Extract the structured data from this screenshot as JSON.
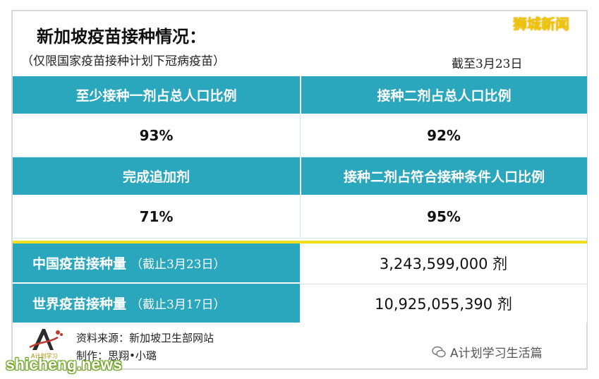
{
  "header": {
    "title": "新加坡疫苗接种情况：",
    "subtitle": "（仅限国家疫苗接种计划下冠病疫苗）",
    "as_of": "截至3月23日",
    "brand": "狮城新闻"
  },
  "stats": [
    {
      "label": "至少接种一剂占总人口比例",
      "value": "93%"
    },
    {
      "label": "接种二剂占总人口比例",
      "value": "92%"
    },
    {
      "label": "完成追加剂",
      "value": "71%"
    },
    {
      "label": "接种二剂占符合接种条件人口比例",
      "value": "95%"
    }
  ],
  "totals": [
    {
      "label": "中国疫苗接种量",
      "note": "（截止3月23日）",
      "value": "3,243,599,000 剂"
    },
    {
      "label": "世界疫苗接种量",
      "note": "（截止3月17日）",
      "value": "10,925,055,390 剂"
    }
  ],
  "footer": {
    "source": "资料来源：新加坡卫生部网站",
    "maker": "制作：思翔•小璐",
    "logo_text": "A计划学习",
    "wechat_account": "A计划学习生活篇",
    "watermark": "shicheng.news"
  },
  "colors": {
    "header_bg": "#2aa6bd",
    "separator": "#f2de1f",
    "brand": "#f2c500"
  }
}
